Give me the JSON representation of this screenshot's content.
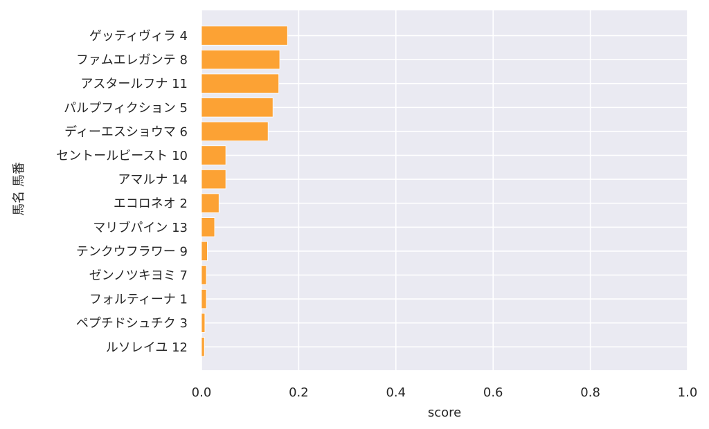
{
  "chart_data": {
    "type": "bar",
    "orientation": "horizontal",
    "categories": [
      "ゲッティヴィラ 4",
      "ファムエレガンテ 8",
      "アスタールフナ 11",
      "パルプフィクション 5",
      "ディーエスショウマ 6",
      "セントールビースト 10",
      "アマルナ 14",
      "エコロネオ 2",
      "マリブパイン 13",
      "テンクウフラワー 9",
      "ゼンノツキヨミ 7",
      "フォルティーナ 1",
      "ペプチドシュチク 3",
      "ルソレイユ 12"
    ],
    "values": [
      0.177,
      0.161,
      0.159,
      0.147,
      0.137,
      0.05,
      0.05,
      0.036,
      0.027,
      0.012,
      0.01,
      0.01,
      0.007,
      0.006
    ],
    "xlabel": "score",
    "ylabel": "馬名 馬番",
    "xlim": [
      0,
      1.0
    ],
    "xticks": [
      "0.0",
      "0.2",
      "0.4",
      "0.6",
      "0.8",
      "1.0"
    ],
    "grid": true,
    "bar_color": "#fca234",
    "background_color": "#eaeaf2"
  }
}
